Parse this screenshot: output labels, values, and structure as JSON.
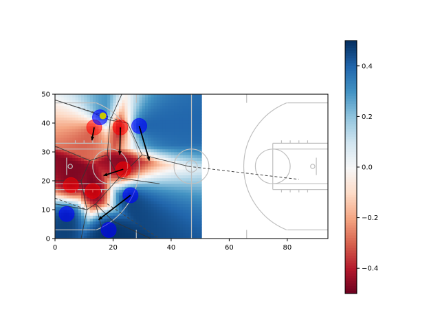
{
  "chart_data": {
    "type": "heatmap",
    "title": "",
    "xlabel": "",
    "ylabel": "",
    "xlim": [
      0,
      94
    ],
    "ylim": [
      0,
      50
    ],
    "x_ticks": [
      0,
      20,
      40,
      60,
      80
    ],
    "y_ticks": [
      0,
      10,
      20,
      30,
      40,
      50
    ],
    "colorbar": {
      "colormap": "RdBu",
      "range": [
        -0.5,
        0.5
      ],
      "ticks": [
        0.4,
        0.2,
        0.0,
        -0.2,
        -0.4
      ],
      "tick_labels": [
        "0.4",
        "0.2",
        "0.0",
        "−0.2",
        "−0.4"
      ]
    },
    "heatmap_extent_x": [
      0,
      50.5
    ],
    "players_red": [
      {
        "x": 13.5,
        "y": 38.5,
        "dx": -0.8,
        "dy": -4.5
      },
      {
        "x": 22.5,
        "y": 38.5,
        "dx": -0.2,
        "dy": -9.5
      },
      {
        "x": 23.5,
        "y": 24.0,
        "dx": -6.8,
        "dy": -2.2
      },
      {
        "x": 5.5,
        "y": 18.5,
        "dx": 0.0,
        "dy": 0.0
      },
      {
        "x": 13.0,
        "y": 16.5,
        "dx": 0.0,
        "dy": 0.0
      }
    ],
    "players_blue": [
      {
        "x": 15.5,
        "y": 42.0,
        "dx": 0.0,
        "dy": 0.0
      },
      {
        "x": 29.0,
        "y": 39.0,
        "dx": 3.5,
        "dy": -12.0
      },
      {
        "x": 26.0,
        "y": 15.0,
        "dx": -11.0,
        "dy": -8.5
      },
      {
        "x": 4.0,
        "y": 8.5,
        "dx": 0.0,
        "dy": 0.0
      },
      {
        "x": 18.5,
        "y": 3.0,
        "dx": 0.0,
        "dy": 0.0
      }
    ],
    "ball": {
      "x": 16.5,
      "y": 42.5
    },
    "colors": {
      "red": "#ff0000",
      "blue": "#0000ff",
      "ball": "#c8c800",
      "court_lines": "#bfbfbf"
    }
  }
}
